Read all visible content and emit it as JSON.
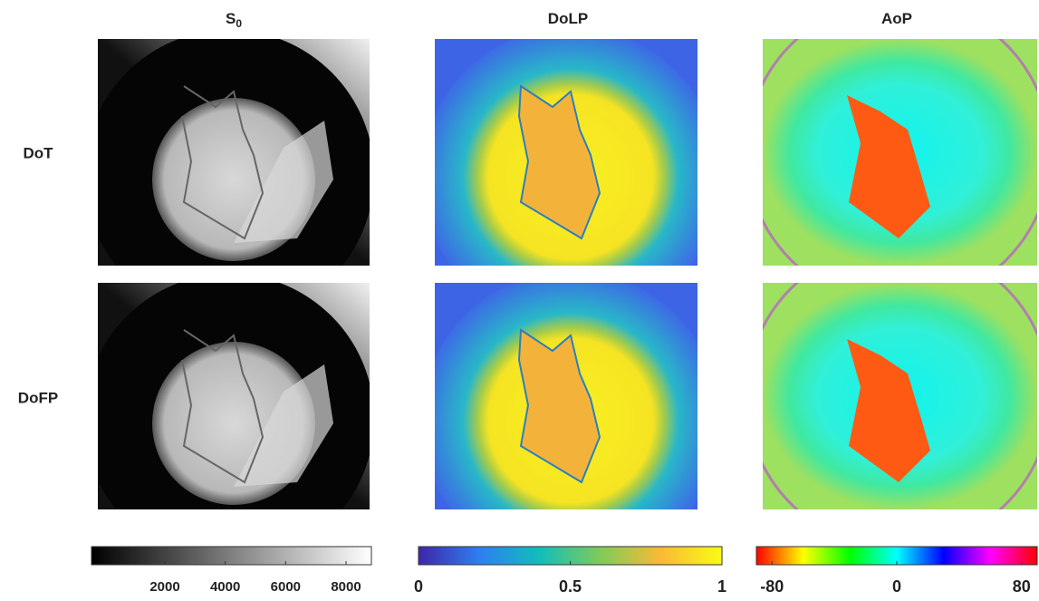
{
  "columns": [
    {
      "title": "S",
      "subscript": "0"
    },
    {
      "title": "DoLP"
    },
    {
      "title": "AoP"
    }
  ],
  "rows": [
    "DoT",
    "DoFP"
  ],
  "colorbars": [
    {
      "lim": [
        -430,
        8840
      ],
      "ticks": [
        2000,
        4000,
        6000,
        8000
      ],
      "colors": [
        "#000000",
        "#ffffff"
      ]
    },
    {
      "lim": [
        0,
        1
      ],
      "ticks": [
        0,
        0.5,
        1
      ],
      "colors": [
        "#3e26a8",
        "#2e7ff0",
        "#12beb9",
        "#7fcb58",
        "#fbb936",
        "#f9fb15"
      ]
    },
    {
      "lim": [
        -90,
        90
      ],
      "ticks": [
        -80,
        0,
        80
      ],
      "colors": [
        "#ff0000",
        "#ffff00",
        "#00ff00",
        "#00ffff",
        "#0000ff",
        "#ff00ff",
        "#ff0000"
      ]
    }
  ]
}
